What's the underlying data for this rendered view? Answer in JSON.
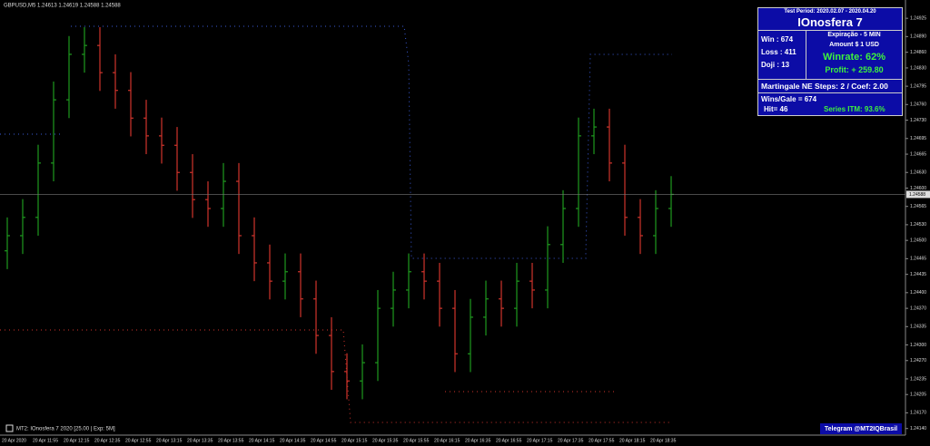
{
  "chart_data": {
    "type": "candlestick",
    "symbol_info": "GBPUSD,M5  1.24613 1.24619 1.24588 1.24588",
    "indicator_label": "MT2: IOnosfera 7 2020 [25.00 | Exp: 5M]",
    "footer_note": "Telegram @MT2IQBrasil",
    "up_color": "#1f9a1f",
    "down_color": "#d0342c",
    "categories": [
      "20 Apr 2020",
      "20 Apr 11:55",
      "20 Apr 12:15",
      "20 Apr 12:35",
      "20 Apr 12:55",
      "20 Apr 13:15",
      "20 Apr 13:35",
      "20 Apr 13:55",
      "20 Apr 14:15",
      "20 Apr 14:35",
      "20 Apr 14:55",
      "20 Apr 15:15",
      "20 Apr 15:35",
      "20 Apr 15:55",
      "20 Apr 16:15",
      "20 Apr 16:35",
      "20 Apr 16:55",
      "20 Apr 17:15",
      "20 Apr 17:35",
      "20 Apr 17:55",
      "20 Apr 18:15",
      "20 Apr 18:35"
    ],
    "open": [
      1.2448,
      1.24509,
      1.24544,
      1.24648,
      1.24769,
      1.24856,
      1.24873,
      1.24821,
      1.24787,
      1.24734,
      1.247,
      1.24682,
      1.2463,
      1.24578,
      1.24561,
      1.24613,
      1.24509,
      1.24457,
      1.24422,
      1.2444,
      1.24388,
      1.24318,
      1.24249,
      1.24231,
      1.24266,
      1.2437,
      1.24405,
      1.2444,
      1.24422,
      1.2437,
      1.24283,
      1.24353,
      1.24388,
      1.2437,
      1.24422,
      1.24405,
      1.24492,
      1.24561,
      1.247,
      1.24717,
      1.24648,
      1.24544,
      1.24509,
      1.24561
    ],
    "high": [
      1.24544,
      1.24579,
      1.24683,
      1.24804,
      1.24891,
      1.24908,
      1.24908,
      1.24856,
      1.24822,
      1.24769,
      1.24735,
      1.24717,
      1.24665,
      1.24613,
      1.24648,
      1.24648,
      1.24544,
      1.24492,
      1.24475,
      1.24475,
      1.24423,
      1.24353,
      1.24284,
      1.24301,
      1.24405,
      1.2444,
      1.24475,
      1.24475,
      1.24457,
      1.24405,
      1.24388,
      1.24423,
      1.24423,
      1.24457,
      1.24457,
      1.24527,
      1.24596,
      1.24735,
      1.24752,
      1.24752,
      1.24683,
      1.24579,
      1.24596,
      1.24623
    ],
    "low": [
      1.24445,
      1.24474,
      1.24509,
      1.24613,
      1.24734,
      1.24821,
      1.24786,
      1.24752,
      1.24699,
      1.24665,
      1.24647,
      1.24595,
      1.24543,
      1.24526,
      1.24526,
      1.24474,
      1.24422,
      1.24387,
      1.24387,
      1.24353,
      1.24283,
      1.24214,
      1.24196,
      1.24196,
      1.24231,
      1.24335,
      1.2437,
      1.24387,
      1.24335,
      1.24248,
      1.24248,
      1.24318,
      1.24335,
      1.24335,
      1.2437,
      1.2437,
      1.24457,
      1.24526,
      1.24665,
      1.24613,
      1.24509,
      1.24474,
      1.24474,
      1.24526
    ],
    "close": [
      1.24509,
      1.24544,
      1.24648,
      1.24769,
      1.24856,
      1.24873,
      1.24821,
      1.24787,
      1.24734,
      1.247,
      1.24682,
      1.2463,
      1.24578,
      1.24561,
      1.24613,
      1.24509,
      1.24457,
      1.24422,
      1.2444,
      1.24388,
      1.24318,
      1.24249,
      1.24231,
      1.24266,
      1.2437,
      1.24405,
      1.2444,
      1.24422,
      1.2437,
      1.24283,
      1.24353,
      1.24388,
      1.2437,
      1.24422,
      1.24405,
      1.24492,
      1.24561,
      1.247,
      1.24717,
      1.24648,
      1.24544,
      1.24509,
      1.24561,
      1.24588
    ],
    "last_price": 1.24588,
    "ylim": [
      1.2411,
      1.2496
    ],
    "yticks": [
      1.24925,
      {
        "value": 1.2489,
        "label": "1.24890"
      },
      {
        "value": 1.2486,
        "label": "1.24860"
      },
      {
        "value": 1.2483,
        "label": "1.24830"
      },
      1.24795,
      {
        "value": 1.2476,
        "label": "1.24760"
      },
      {
        "value": 1.2473,
        "label": "1.24730"
      },
      1.24695,
      1.24665,
      {
        "value": 1.2463,
        "label": "1.24630"
      },
      {
        "value": 1.246,
        "label": "1.24600"
      },
      1.24565,
      {
        "value": 1.2453,
        "label": "1.24530"
      },
      {
        "value": 1.245,
        "label": "1.24500"
      },
      1.24465,
      1.24435,
      {
        "value": 1.244,
        "label": "1.24400"
      },
      {
        "value": 1.2437,
        "label": "1.24370"
      },
      1.24335,
      {
        "value": 1.243,
        "label": "1.24300"
      },
      {
        "value": 1.2427,
        "label": "1.24270"
      },
      1.24235,
      1.24205,
      {
        "value": 1.2417,
        "label": "1.24170"
      },
      {
        "value": 1.2414,
        "label": "1.24140"
      }
    ]
  },
  "panel": {
    "period": "Test Period: 2020.02.07 - 2020.04.20",
    "name": "IOnosfera 7",
    "win": "Win   : 674",
    "loss": "Loss : 411",
    "doji": "Doji  : 13",
    "expiry": "Expiração - 5 MIN",
    "amount": "Amount   $  1 USD",
    "winrate": "Winrate: 62%",
    "profit": "Profit: + 259.80",
    "martingale": "Martingale NE  Steps: 2 / Coef: 2.00",
    "wins_gale": "Wins/Gale = 674",
    "hit": "Hit= 46",
    "series": "Series ITM: 93.6%"
  }
}
